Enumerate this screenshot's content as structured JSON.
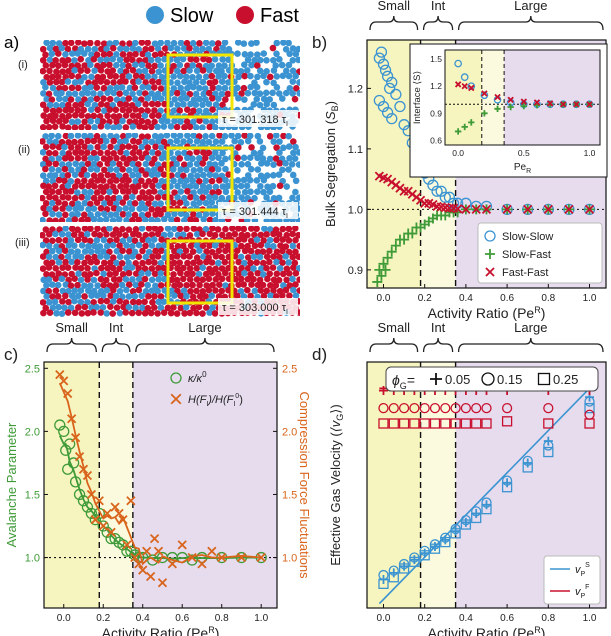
{
  "legend_top": {
    "slow": "Slow",
    "fast": "Fast",
    "slow_color": "#3b94d1",
    "fast_color": "#c8102e"
  },
  "panel_a": {
    "label": "a)",
    "rows": [
      {
        "roman": "(i)",
        "tau": "τ = 301.318 τ",
        "tau_sub": "I"
      },
      {
        "roman": "(ii)",
        "tau": "τ = 301.444 τ",
        "tau_sub": "I"
      },
      {
        "roman": "(iii)",
        "tau": "τ = 303.000 τ",
        "tau_sub": "I"
      }
    ],
    "box_color": "#f2e600"
  },
  "regimes": {
    "small": "Small",
    "int": "Int",
    "large": "Large",
    "b1": 0.18,
    "b2": 0.35,
    "colors": {
      "small": "#f6f4bf",
      "int": "#fbfadf",
      "large": "#e6dcee"
    }
  },
  "chart_data": [
    {
      "id": "b",
      "label": "b)",
      "type": "scatter",
      "ylabel": "Bulk Segregation ⟨S_B⟩",
      "xlabel": "Activity Ratio (Pe^R)",
      "xlim": [
        -0.08,
        1.08
      ],
      "ylim": [
        0.87,
        1.28
      ],
      "xticks": [
        0.0,
        0.2,
        0.4,
        0.6,
        0.8,
        1.0
      ],
      "yticks": [
        0.9,
        1.0,
        1.1,
        1.2
      ],
      "hline": 1.0,
      "series": [
        {
          "name": "Slow-Slow",
          "marker": "circle",
          "color": "#3b94d1",
          "x": [
            -0.02,
            -0.01,
            0.0,
            0.01,
            0.02,
            0.03,
            0.04,
            -0.02,
            0.0,
            0.02,
            0.04,
            0.06,
            0.08,
            0.1,
            0.12,
            0.14,
            0.16,
            0.18,
            0.2,
            0.22,
            0.24,
            0.26,
            0.28,
            0.3,
            0.32,
            0.34,
            0.36,
            0.4,
            0.45,
            0.5,
            0.6,
            0.7,
            0.8,
            0.9,
            1.0
          ],
          "y": [
            1.25,
            1.26,
            1.24,
            1.23,
            1.22,
            1.2,
            1.21,
            1.18,
            1.17,
            1.16,
            1.15,
            1.19,
            1.17,
            1.14,
            1.13,
            1.11,
            1.09,
            1.07,
            1.06,
            1.05,
            1.04,
            1.03,
            1.03,
            1.02,
            1.02,
            1.01,
            1.01,
            1.01,
            1.005,
            1.005,
            1.0,
            1.0,
            1.0,
            1.0,
            1.0
          ]
        },
        {
          "name": "Slow-Fast",
          "marker": "plus",
          "color": "#3f9b38",
          "x": [
            -0.03,
            -0.02,
            -0.01,
            0.0,
            0.01,
            0.02,
            0.04,
            0.06,
            0.08,
            0.1,
            0.12,
            0.14,
            0.16,
            0.18,
            0.2,
            0.22,
            0.24,
            0.26,
            0.28,
            0.3,
            0.32,
            0.34,
            0.36,
            0.4,
            0.45,
            0.5,
            0.6,
            0.7,
            0.8,
            0.9,
            1.0
          ],
          "y": [
            0.88,
            0.9,
            0.89,
            0.91,
            0.9,
            0.92,
            0.93,
            0.94,
            0.95,
            0.95,
            0.96,
            0.96,
            0.97,
            0.97,
            0.975,
            0.98,
            0.985,
            0.99,
            0.99,
            0.99,
            0.995,
            0.995,
            0.995,
            1.0,
            1.0,
            1.0,
            1.0,
            1.0,
            1.0,
            1.0,
            1.0
          ]
        },
        {
          "name": "Fast-Fast",
          "marker": "cross",
          "color": "#c8102e",
          "x": [
            -0.02,
            0.0,
            0.02,
            0.04,
            0.06,
            0.08,
            0.1,
            0.12,
            0.14,
            0.16,
            0.18,
            0.2,
            0.22,
            0.24,
            0.26,
            0.28,
            0.3,
            0.32,
            0.34,
            0.36,
            0.4,
            0.45,
            0.5,
            0.6,
            0.7,
            0.8,
            0.9,
            1.0
          ],
          "y": [
            1.055,
            1.052,
            1.05,
            1.045,
            1.04,
            1.035,
            1.03,
            1.03,
            1.025,
            1.02,
            1.015,
            1.01,
            1.01,
            1.008,
            1.005,
            1.004,
            1.003,
            1.002,
            1.002,
            1.001,
            1.0,
            1.0,
            1.0,
            1.0,
            1.0,
            1.0,
            1.0,
            1.0
          ]
        }
      ],
      "inset": {
        "ylabel": "Interface ⟨S⟩",
        "xlabel": "Pe_R",
        "xlim": [
          -0.1,
          1.08
        ],
        "ylim": [
          0.55,
          1.6
        ],
        "xticks": [
          0.0,
          0.5,
          1.0
        ],
        "yticks": [
          0.6,
          0.9,
          1.2,
          1.5
        ],
        "hline": 1.0,
        "series": [
          {
            "name": "Slow-Slow",
            "marker": "circle",
            "color": "#3b94d1",
            "x": [
              0.0,
              0.05,
              0.1,
              0.2,
              0.3,
              0.4,
              0.5,
              0.6,
              0.7,
              0.8,
              0.9,
              1.0
            ],
            "y": [
              1.45,
              1.3,
              1.2,
              1.1,
              1.05,
              1.02,
              1.0,
              1.0,
              1.0,
              1.0,
              1.0,
              1.0
            ]
          },
          {
            "name": "Slow-Fast",
            "marker": "plus",
            "color": "#3f9b38",
            "x": [
              0.0,
              0.05,
              0.1,
              0.2,
              0.3,
              0.4,
              0.5,
              0.6,
              0.7,
              0.8,
              0.9,
              1.0
            ],
            "y": [
              0.7,
              0.75,
              0.8,
              0.9,
              0.95,
              0.97,
              0.98,
              0.99,
              1.0,
              1.0,
              1.0,
              1.0
            ]
          },
          {
            "name": "Fast-Fast",
            "marker": "cross",
            "color": "#c8102e",
            "x": [
              0.0,
              0.05,
              0.1,
              0.2,
              0.3,
              0.4,
              0.5,
              0.6,
              0.7,
              0.8,
              0.9,
              1.0
            ],
            "y": [
              1.22,
              1.2,
              1.18,
              1.12,
              1.08,
              1.05,
              1.03,
              1.02,
              1.01,
              1.0,
              1.0,
              1.0
            ]
          }
        ]
      }
    },
    {
      "id": "c",
      "label": "c)",
      "type": "scatter",
      "ylabel": "Avalanche Parameter",
      "ylabel_right": "Compression Force Fluctuations",
      "xlabel": "Activity Ratio (Pe^R)",
      "xlim": [
        -0.1,
        1.08
      ],
      "ylim": [
        0.6,
        2.55
      ],
      "xticks": [
        0.0,
        0.2,
        0.4,
        0.6,
        0.8,
        1.0
      ],
      "yticks": [
        1.0,
        1.5,
        2.0,
        2.5
      ],
      "hline": 1.0,
      "series": [
        {
          "name": "κ/κ⁰",
          "marker": "circle",
          "color": "#3f9b38",
          "x": [
            -0.02,
            0.0,
            0.01,
            0.02,
            0.03,
            0.05,
            0.06,
            0.08,
            0.1,
            0.12,
            0.14,
            0.16,
            0.18,
            0.2,
            0.22,
            0.24,
            0.26,
            0.28,
            0.3,
            0.32,
            0.34,
            0.36,
            0.38,
            0.4,
            0.45,
            0.5,
            0.55,
            0.6,
            0.65,
            0.7,
            0.8,
            0.9,
            1.0
          ],
          "y": [
            2.05,
            2.0,
            1.85,
            1.7,
            1.9,
            1.75,
            1.6,
            1.5,
            1.45,
            1.4,
            1.35,
            1.3,
            1.35,
            1.25,
            1.2,
            1.15,
            1.15,
            1.12,
            1.1,
            1.05,
            1.05,
            1.02,
            1.0,
            1.0,
            0.98,
            1.0,
            1.0,
            1.0,
            0.98,
            1.0,
            1.0,
            1.0,
            1.0
          ]
        },
        {
          "name": "H(F_I)/H(F_I⁰)",
          "marker": "cross",
          "color": "#d9641c",
          "x": [
            -0.02,
            0.0,
            0.02,
            0.04,
            0.06,
            0.08,
            0.1,
            0.12,
            0.14,
            0.16,
            0.18,
            0.2,
            0.22,
            0.24,
            0.26,
            0.28,
            0.3,
            0.32,
            0.34,
            0.36,
            0.38,
            0.4,
            0.42,
            0.44,
            0.46,
            0.48,
            0.5,
            0.55,
            0.6,
            0.65,
            0.7,
            0.75,
            0.8,
            0.9,
            1.0
          ],
          "y": [
            2.45,
            2.4,
            2.3,
            2.1,
            1.95,
            1.8,
            1.7,
            1.65,
            1.5,
            1.3,
            1.45,
            1.25,
            1.35,
            1.2,
            1.4,
            1.35,
            1.3,
            1.1,
            1.45,
            1.0,
            0.95,
            0.9,
            1.05,
            0.85,
            1.15,
            1.05,
            0.8,
            0.95,
            1.1,
            1.0,
            0.95,
            1.05,
            1.0,
            1.0,
            1.0
          ]
        }
      ],
      "legend": [
        {
          "label": "κ/κ⁰"
        },
        {
          "label": "H(F_I)/H(F_I⁰)"
        }
      ]
    },
    {
      "id": "d",
      "label": "d)",
      "type": "scatter",
      "ylabel": "Effective Gas Velocity ⟨v_G⟩",
      "xlabel": "Activity Ratio (Pe^R)",
      "xlim": [
        -0.08,
        1.08
      ],
      "ylim": [
        0,
        560
      ],
      "xticks": [
        0.0,
        0.2,
        0.4,
        0.6,
        0.8,
        1.0
      ],
      "yticks": [],
      "phi_legend": {
        "prefix": "φ_G =",
        "items": [
          "0.05",
          "0.15",
          "0.25"
        ]
      },
      "series": [
        {
          "name": "v_P^S",
          "marker": "line",
          "color": "#3b94d1",
          "x": [
            -0.02,
            1.0
          ],
          "y": [
            10,
            500
          ]
        },
        {
          "name": "v_P^F",
          "marker": "line",
          "color": "#c8102e",
          "x": [
            -0.02,
            1.0
          ],
          "y": [
            500,
            500
          ]
        },
        {
          "name": "slow φ0.05",
          "marker": "plus",
          "color": "#3b94d1",
          "x": [
            0.0,
            0.05,
            0.1,
            0.15,
            0.2,
            0.25,
            0.3,
            0.35,
            0.4,
            0.45,
            0.5,
            0.6,
            0.7,
            0.8,
            1.0
          ],
          "y": [
            65,
            80,
            95,
            110,
            125,
            140,
            155,
            175,
            195,
            215,
            235,
            285,
            330,
            380,
            480
          ]
        },
        {
          "name": "slow φ0.15",
          "marker": "circle",
          "color": "#3b94d1",
          "x": [
            0.0,
            0.05,
            0.1,
            0.15,
            0.2,
            0.25,
            0.3,
            0.35,
            0.4,
            0.45,
            0.5,
            0.6,
            0.7,
            0.8,
            1.0
          ],
          "y": [
            75,
            85,
            100,
            115,
            130,
            145,
            160,
            180,
            200,
            220,
            240,
            290,
            335,
            370,
            470
          ]
        },
        {
          "name": "slow φ0.25",
          "marker": "square",
          "color": "#3b94d1",
          "x": [
            0.0,
            0.05,
            0.1,
            0.15,
            0.2,
            0.25,
            0.3,
            0.35,
            0.4,
            0.45,
            0.5,
            0.6,
            0.7,
            0.8,
            1.0
          ],
          "y": [
            55,
            70,
            90,
            105,
            120,
            135,
            150,
            170,
            190,
            205,
            225,
            275,
            320,
            355,
            455
          ]
        },
        {
          "name": "fast φ0.05",
          "marker": "plus",
          "color": "#c8102e",
          "x": [
            0.0,
            0.05,
            0.1,
            0.15,
            0.2,
            0.25,
            0.3,
            0.35,
            0.4,
            0.45,
            0.5,
            0.6,
            0.8,
            1.0
          ],
          "y": [
            495,
            495,
            495,
            495,
            495,
            495,
            495,
            495,
            495,
            495,
            495,
            495,
            495,
            495
          ]
        },
        {
          "name": "fast φ0.15",
          "marker": "circle",
          "color": "#c8102e",
          "x": [
            0.0,
            0.05,
            0.1,
            0.15,
            0.2,
            0.25,
            0.3,
            0.35,
            0.4,
            0.45,
            0.5,
            0.6,
            0.8,
            1.0
          ],
          "y": [
            455,
            455,
            455,
            455,
            455,
            455,
            455,
            455,
            455,
            455,
            455,
            455,
            455,
            440
          ]
        },
        {
          "name": "fast φ0.25",
          "marker": "square",
          "color": "#c8102e",
          "x": [
            0.0,
            0.05,
            0.1,
            0.15,
            0.2,
            0.25,
            0.3,
            0.35,
            0.4,
            0.45,
            0.5,
            0.6,
            0.8,
            1.0
          ],
          "y": [
            420,
            420,
            420,
            420,
            420,
            420,
            420,
            420,
            420,
            420,
            420,
            425,
            420,
            420
          ]
        }
      ]
    }
  ],
  "text": {
    "b_legend": [
      "Slow-Slow",
      "Slow-Fast",
      "Fast-Fast"
    ],
    "b_ylabel_main": "Bulk Segregation (",
    "b_ylabel_sym": "S",
    "b_ylabel_sub": "B",
    "b_ylabel_end": ")",
    "xlabel_main": "Activity Ratio (Pe",
    "xlabel_sup": "R",
    "xlabel_end": ")",
    "inset_ylabel": "Interface ⟨S⟩",
    "inset_xlabel": "Pe",
    "inset_xlabel_sub": "R",
    "c_ylabel": "Avalanche Parameter",
    "c_ylabel_right": "Compression Force Fluctuations",
    "d_ylabel_main": "Effective Gas Velocity (",
    "d_ylabel_sym": "⟨v",
    "d_ylabel_sub": "G",
    "d_ylabel_end": "⟩)",
    "d_phi": "ϕ",
    "d_phi_sub": "G",
    "d_phi_eq": "=",
    "vp_s": "v",
    "vp_s_sub": "P",
    "vp_s_sup": "S",
    "vp_f": "v",
    "vp_f_sub": "P",
    "vp_f_sup": "F"
  }
}
